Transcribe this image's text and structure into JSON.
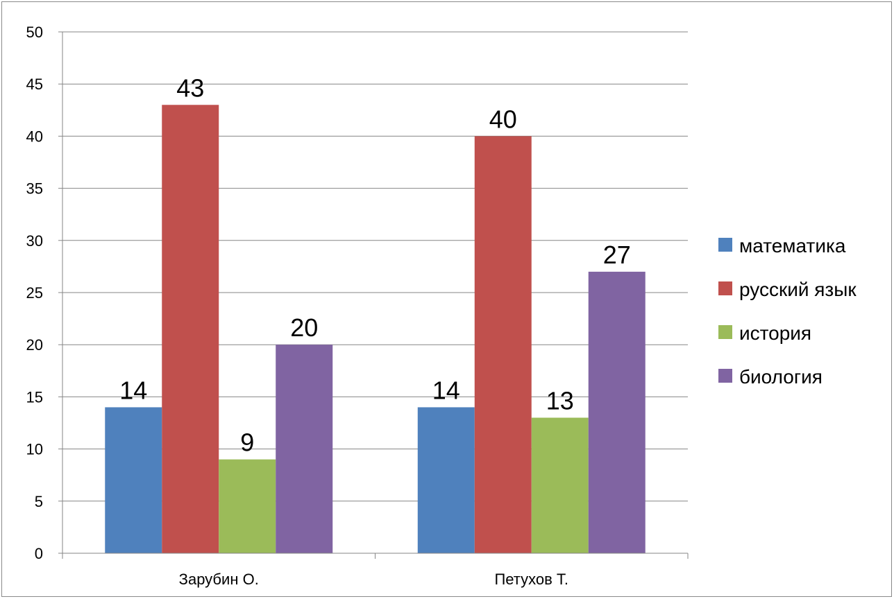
{
  "chart_data": {
    "type": "bar",
    "title": "",
    "xlabel": "",
    "ylabel": "",
    "categories": [
      "Зарубин О.",
      "Петухов Т."
    ],
    "series": [
      {
        "name": "математика",
        "values": [
          14,
          14
        ],
        "color": "#4F81BD"
      },
      {
        "name": "русский язык",
        "values": [
          43,
          40
        ],
        "color": "#C0504D"
      },
      {
        "name": "история",
        "values": [
          9,
          13
        ],
        "color": "#9BBB59"
      },
      {
        "name": "биология",
        "values": [
          20,
          27
        ],
        "color": "#8064A2"
      }
    ],
    "ylim": [
      0,
      50
    ],
    "yticks": [
      "0",
      "5",
      "10",
      "15",
      "20",
      "25",
      "30",
      "35",
      "40",
      "45",
      "50"
    ],
    "ytick_values": [
      0,
      5,
      10,
      15,
      20,
      25,
      30,
      35,
      40,
      45,
      50
    ],
    "grid": true,
    "data_labels": true,
    "legend_position": "right"
  }
}
